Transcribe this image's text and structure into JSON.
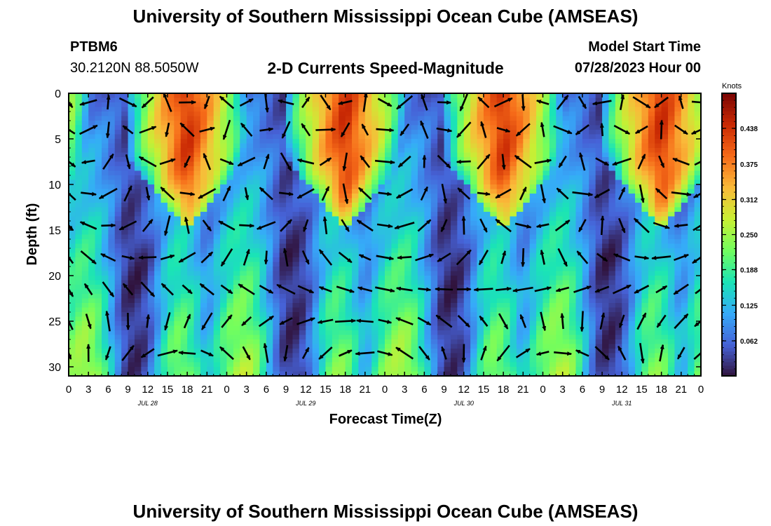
{
  "header": {
    "title": "University of Southern Mississippi Ocean Cube (AMSEAS)",
    "station": "PTBM6",
    "coords": "30.2120N  88.5050W",
    "subtitle": "2-D Currents Speed-Magnitude",
    "start_label": "Model Start Time",
    "start_value": "07/28/2023 Hour 00"
  },
  "footer": {
    "title": "University of Southern Mississippi Ocean Cube (AMSEAS)"
  },
  "colors": {
    "scale": [
      "#30123b",
      "#4662d7",
      "#36aaf9",
      "#1ae4b6",
      "#72fe5e",
      "#c8ef34",
      "#faba39",
      "#f66b19",
      "#ca2a04",
      "#7a0403"
    ],
    "arrow": "#000000"
  },
  "chart_data": {
    "type": "heatmap",
    "xlabel": "Forecast Time(Z)",
    "ylabel": "Depth (ft)",
    "xlim": [
      0,
      96
    ],
    "ylim": [
      31,
      0
    ],
    "x_tick_values": [
      0,
      3,
      6,
      9,
      12,
      15,
      18,
      21,
      24,
      27,
      30,
      33,
      36,
      39,
      42,
      45,
      48,
      51,
      54,
      57,
      60,
      63,
      66,
      69,
      72,
      75,
      78,
      81,
      84,
      87,
      90,
      93,
      96
    ],
    "x_tick_labels": [
      "0",
      "3",
      "6",
      "9",
      "12",
      "15",
      "18",
      "21",
      "0",
      "3",
      "6",
      "9",
      "12",
      "15",
      "18",
      "21",
      "0",
      "3",
      "6",
      "9",
      "12",
      "15",
      "18",
      "21",
      "0",
      "3",
      "6",
      "9",
      "12",
      "15",
      "18",
      "21",
      "0"
    ],
    "day_labels": [
      {
        "text": "JUL 28",
        "x": 12
      },
      {
        "text": "JUL 29",
        "x": 36
      },
      {
        "text": "JUL 30",
        "x": 60
      },
      {
        "text": "JUL 31",
        "x": 84
      }
    ],
    "y_tick_values": [
      0,
      5,
      10,
      15,
      20,
      25,
      30
    ],
    "y_tick_labels": [
      "0",
      "5",
      "10",
      "15",
      "20",
      "25",
      "30"
    ],
    "colorbar": {
      "title": "Knots",
      "range": [
        0,
        0.5
      ],
      "tick_values": [
        0.062,
        0.125,
        0.188,
        0.25,
        0.312,
        0.375,
        0.438
      ],
      "tick_labels": [
        "0.062",
        "0.125",
        "0.188",
        "0.250",
        "0.312",
        "0.375",
        "0.438"
      ]
    },
    "vector_columns_hours": [
      0,
      3,
      6,
      9,
      12,
      15,
      18,
      21,
      24,
      27,
      30,
      33,
      36,
      39,
      42,
      45,
      48,
      51,
      54,
      57,
      60,
      63,
      66,
      69,
      72,
      75,
      78,
      81,
      84,
      87,
      90,
      93,
      96
    ],
    "vector_rows_ft": [
      1,
      4,
      7.5,
      11,
      14.5,
      18,
      21.5,
      25,
      28.5
    ],
    "speed_model": {
      "units": "knots",
      "upper_cycle_hours": 24,
      "upper_peak_hours": [
        18,
        42,
        66,
        90
      ],
      "upper_peak_speed": 0.44,
      "upper_band_bottom_ft": 15,
      "lower_layer_speed": 0.2,
      "minimum_speed": 0.02
    }
  }
}
